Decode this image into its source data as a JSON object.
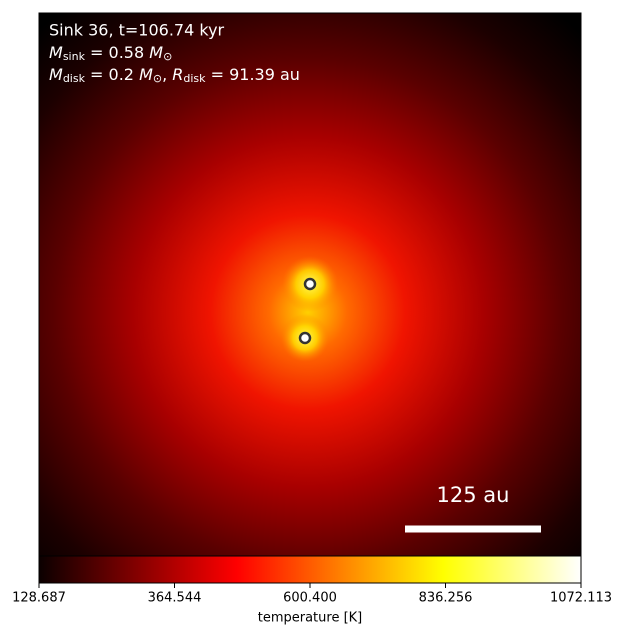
{
  "chart_data": {
    "type": "image",
    "title": "Sink 36, t=106.74 kyr",
    "annotation_sink_mass": [
      "M",
      "sink",
      " = 0.58 ",
      "M",
      "⊙"
    ],
    "annotation_disk": [
      "M",
      "disk",
      " = 0.2 ",
      "M",
      "⊙",
      ", ",
      "R",
      "disk",
      " = 91.39 au"
    ],
    "scale_bar_label": "125 au",
    "colormap": "hot",
    "clim": [
      128.687,
      1072.113
    ],
    "colorbar_label": "temperature [K]",
    "colorbar_ticks": [
      128.687,
      364.544,
      {
        "value": 600.4,
        "label": "600.400"
      },
      836.256,
      1072.113
    ]
  }
}
